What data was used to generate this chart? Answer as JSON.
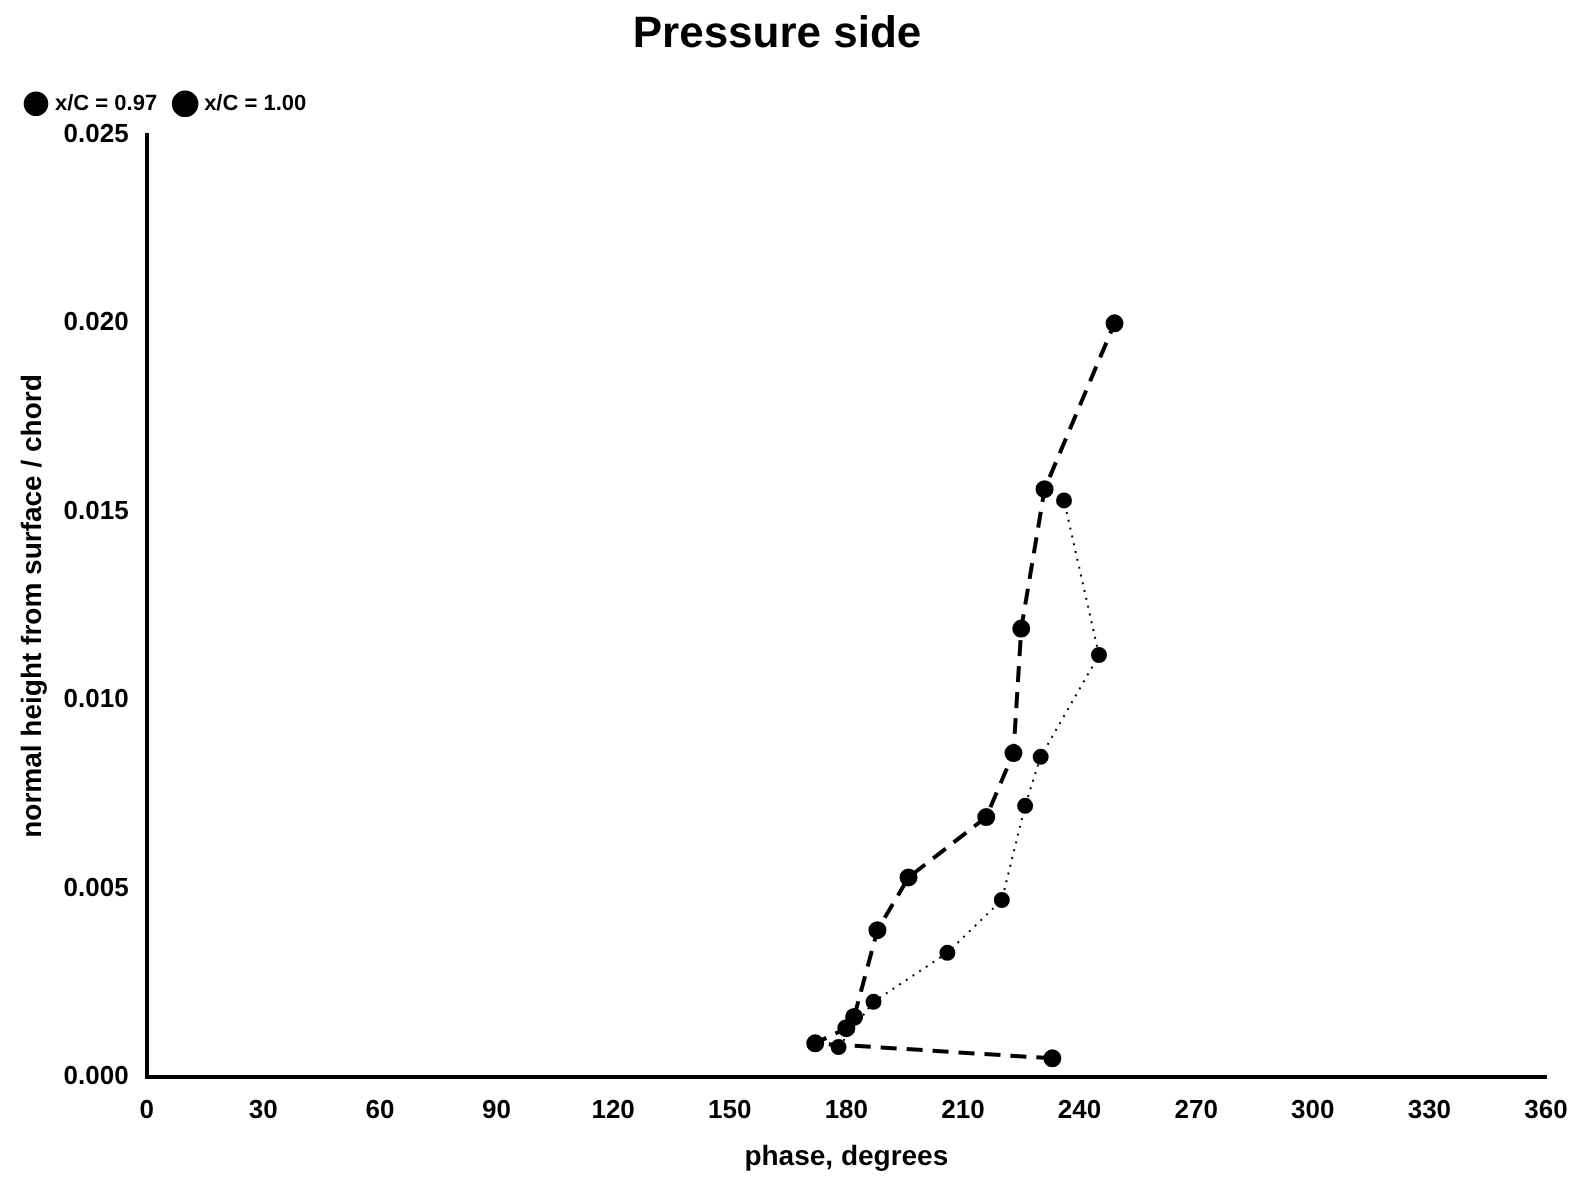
{
  "chart_data": {
    "type": "line",
    "title": "Pressure side",
    "xlabel": "phase, degrees",
    "ylabel": "normal height from surface / chord",
    "xlim": [
      0,
      360
    ],
    "xticks": [
      0,
      30,
      60,
      90,
      120,
      150,
      180,
      210,
      240,
      270,
      300,
      330,
      360
    ],
    "ylim": [
      0,
      0.025
    ],
    "yticks": [
      {
        "value": 0,
        "label": "0.000"
      },
      {
        "value": 0.005,
        "label": "0.005"
      },
      {
        "value": 0.01,
        "label": "0.010"
      },
      {
        "value": 0.015,
        "label": "0.015"
      },
      {
        "value": 0.02,
        "label": "0.020"
      },
      {
        "value": 0.025,
        "label": "0.025"
      }
    ],
    "grid": false,
    "legend": "top left",
    "marker": "circle",
    "series": [
      {
        "name": "x/C = 0.97",
        "color": "#000000",
        "line_style": "dotted",
        "x": [
          178,
          187,
          206,
          220,
          226,
          230,
          245,
          236
        ],
        "values": [
          0.0008,
          0.002,
          0.0033,
          0.0047,
          0.0072,
          0.0085,
          0.0112,
          0.0153
        ]
      },
      {
        "name": "x/C = 1.00",
        "color": "#000000",
        "line_style": "dashed",
        "x": [
          233,
          172,
          180,
          182,
          188,
          196,
          216,
          223,
          225,
          231,
          249
        ],
        "values": [
          0.0005,
          0.0009,
          0.0013,
          0.0016,
          0.0039,
          0.0053,
          0.0069,
          0.0086,
          0.0119,
          0.0156,
          0.02
        ]
      }
    ]
  }
}
